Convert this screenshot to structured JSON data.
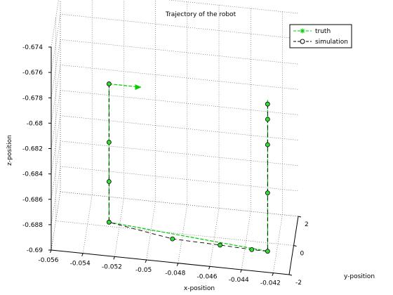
{
  "chart_data": {
    "type": "line3d",
    "title": "Trajectory of the robot",
    "xlabel": "x-position",
    "ylabel": "y-position",
    "zlabel": "z-position",
    "xlim": [
      -0.056,
      -0.041
    ],
    "ylim": [
      -2,
      2
    ],
    "zlim": [
      -0.69,
      -0.674
    ],
    "x_ticks": [
      "-0.056",
      "-0.054",
      "-0.052",
      "-0.05",
      "-0.048",
      "-0.046",
      "-0.044",
      "-0.042"
    ],
    "y_ticks": [
      "-2",
      "0",
      "2"
    ],
    "z_ticks": [
      "-0.674",
      "-0.676",
      "-0.678",
      "-0.68",
      "-0.682",
      "-0.684",
      "-0.686",
      "-0.688",
      "-0.69"
    ],
    "grid": true,
    "legend": "top-right",
    "series": [
      {
        "name": "truth",
        "color": "#00cc00",
        "style": "dashed",
        "marker": "star",
        "points": [
          [
            -0.0525,
            -1,
            -0.6776
          ],
          [
            -0.0525,
            -1,
            -0.6885
          ],
          [
            -0.0425,
            -1,
            -0.6895
          ],
          [
            -0.0425,
            -1,
            -0.6775
          ]
        ],
        "arrow_tip": [
          -0.0505,
          -1,
          -0.6776
        ]
      },
      {
        "name": "simulation",
        "color": "#000000",
        "fill": "#33dd33",
        "style": "dashed",
        "marker": "circle",
        "points": [
          [
            -0.0525,
            -1,
            -0.6776
          ],
          [
            -0.0525,
            -1,
            -0.6822
          ],
          [
            -0.0525,
            -1,
            -0.6853
          ],
          [
            -0.0525,
            -1,
            -0.6885
          ],
          [
            -0.0485,
            -1,
            -0.6893
          ],
          [
            -0.0455,
            -1,
            -0.6894
          ],
          [
            -0.0435,
            -1,
            -0.6895
          ],
          [
            -0.0425,
            -1,
            -0.6895
          ],
          [
            -0.0425,
            -1,
            -0.6849
          ],
          [
            -0.0425,
            -1,
            -0.6811
          ],
          [
            -0.0425,
            -1,
            -0.6791
          ],
          [
            -0.0425,
            -1,
            -0.6779
          ]
        ]
      }
    ]
  }
}
